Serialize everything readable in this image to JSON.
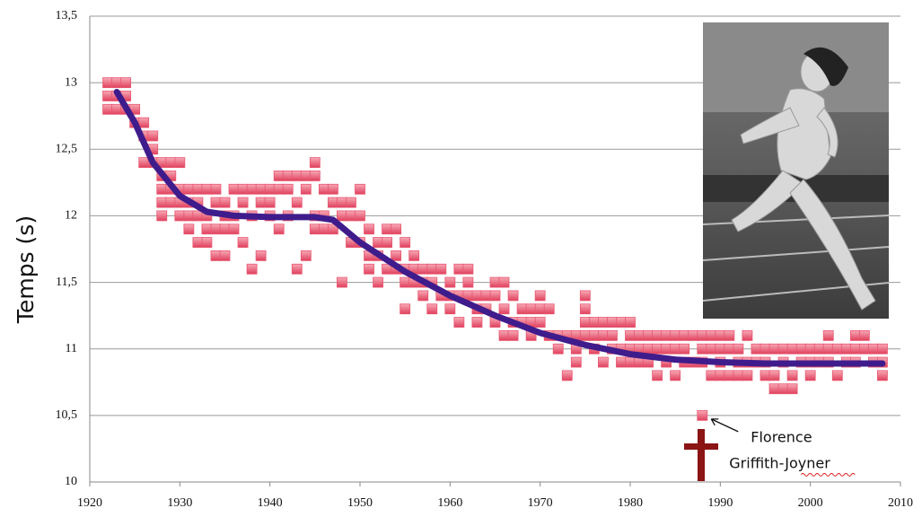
{
  "chart_data": {
    "type": "scatter",
    "y_label": "Temps (s)",
    "xlim": [
      1920,
      2010
    ],
    "xticks": [
      1920,
      1930,
      1940,
      1950,
      1960,
      1970,
      1980,
      1990,
      2000,
      2010
    ],
    "ylim": [
      10,
      13.5
    ],
    "yticks": [
      10,
      {
        "value": 10.5,
        "label": "10,5"
      },
      11,
      {
        "value": 11.5,
        "label": "11,5"
      },
      12,
      {
        "value": 12.5,
        "label": "12,5"
      },
      13,
      {
        "value": 13.5,
        "label": "13,5"
      }
    ],
    "grid": true,
    "series": [
      {
        "color": "#e8566f",
        "x": [
          1922,
          1922,
          1922,
          1923,
          1923,
          1923,
          1924,
          1924,
          1924,
          1925,
          1925,
          1926,
          1926,
          1926,
          1927,
          1927,
          1927,
          1928,
          1928,
          1928,
          1928,
          1928,
          1929,
          1929,
          1929,
          1929,
          1930,
          1930,
          1930,
          1930,
          1931,
          1931,
          1931,
          1931,
          1932,
          1932,
          1932,
          1932,
          1933,
          1933,
          1933,
          1933,
          1934,
          1934,
          1934,
          1934,
          1935,
          1935,
          1935,
          1935,
          1936,
          1936,
          1936,
          1937,
          1937,
          1937,
          1938,
          1938,
          1938,
          1939,
          1939,
          1939,
          1940,
          1940,
          1940,
          1941,
          1941,
          1941,
          1942,
          1942,
          1942,
          1943,
          1943,
          1943,
          1944,
          1944,
          1944,
          1945,
          1945,
          1945,
          1945,
          1946,
          1946,
          1946,
          1947,
          1947,
          1947,
          1948,
          1948,
          1948,
          1949,
          1949,
          1949,
          1950,
          1950,
          1950,
          1951,
          1951,
          1951,
          1952,
          1952,
          1952,
          1953,
          1953,
          1953,
          1954,
          1954,
          1954,
          1955,
          1955,
          1955,
          1955,
          1956,
          1956,
          1956,
          1957,
          1957,
          1957,
          1958,
          1958,
          1958,
          1959,
          1959,
          1960,
          1960,
          1960,
          1961,
          1961,
          1961,
          1962,
          1962,
          1962,
          1963,
          1963,
          1963,
          1964,
          1964,
          1965,
          1965,
          1965,
          1966,
          1966,
          1966,
          1967,
          1967,
          1967,
          1968,
          1968,
          1969,
          1969,
          1969,
          1970,
          1970,
          1970,
          1971,
          1971,
          1972,
          1972,
          1973,
          1973,
          1974,
          1974,
          1974,
          1975,
          1975,
          1975,
          1975,
          1976,
          1976,
          1976,
          1977,
          1977,
          1977,
          1978,
          1978,
          1978,
          1979,
          1979,
          1979,
          1980,
          1980,
          1980,
          1980,
          1981,
          1981,
          1981,
          1982,
          1982,
          1982,
          1983,
          1983,
          1983,
          1984,
          1984,
          1984,
          1985,
          1985,
          1985,
          1986,
          1986,
          1986,
          1987,
          1987,
          1988,
          1988,
          1988,
          1988,
          1989,
          1989,
          1989,
          1990,
          1990,
          1990,
          1990,
          1991,
          1991,
          1991,
          1992,
          1992,
          1992,
          1993,
          1993,
          1993,
          1994,
          1994,
          1995,
          1995,
          1995,
          1996,
          1996,
          1996,
          1997,
          1997,
          1997,
          1998,
          1998,
          1998,
          1999,
          1999,
          2000,
          2000,
          2000,
          2001,
          2001,
          2002,
          2002,
          2002,
          2003,
          2003,
          2004,
          2004,
          2005,
          2005,
          2005,
          2006,
          2006,
          2007,
          2007,
          2008,
          2008,
          2008
        ],
        "values": [
          13.0,
          12.9,
          12.8,
          13.0,
          12.9,
          12.8,
          13.0,
          12.9,
          12.8,
          12.8,
          12.7,
          12.7,
          12.6,
          12.4,
          12.6,
          12.5,
          12.4,
          12.4,
          12.3,
          12.2,
          12.1,
          12.0,
          12.4,
          12.3,
          12.2,
          12.1,
          12.4,
          12.2,
          12.1,
          12.0,
          12.2,
          12.1,
          12.0,
          11.9,
          12.2,
          12.1,
          12.0,
          11.8,
          12.2,
          12.0,
          11.9,
          11.8,
          12.2,
          12.1,
          11.9,
          11.7,
          12.1,
          12.0,
          11.9,
          11.7,
          12.2,
          12.0,
          11.9,
          12.2,
          12.1,
          11.8,
          12.2,
          12.0,
          11.6,
          12.2,
          12.1,
          11.7,
          12.2,
          12.1,
          12.0,
          12.3,
          12.2,
          11.9,
          12.3,
          12.2,
          12.0,
          12.3,
          12.1,
          11.6,
          12.3,
          12.2,
          11.7,
          12.4,
          12.3,
          12.0,
          11.9,
          12.2,
          12.0,
          11.9,
          12.2,
          12.1,
          11.9,
          12.1,
          12.0,
          11.5,
          12.1,
          12.0,
          11.8,
          12.2,
          12.0,
          11.8,
          11.9,
          11.7,
          11.6,
          11.8,
          11.7,
          11.5,
          11.9,
          11.8,
          11.6,
          11.9,
          11.7,
          11.6,
          11.8,
          11.6,
          11.5,
          11.3,
          11.7,
          11.6,
          11.5,
          11.6,
          11.5,
          11.4,
          11.6,
          11.5,
          11.3,
          11.6,
          11.4,
          11.5,
          11.4,
          11.3,
          11.6,
          11.4,
          11.2,
          11.6,
          11.5,
          11.4,
          11.4,
          11.3,
          11.2,
          11.4,
          11.3,
          11.5,
          11.4,
          11.2,
          11.5,
          11.3,
          11.1,
          11.4,
          11.2,
          11.1,
          11.3,
          11.2,
          11.3,
          11.2,
          11.1,
          11.4,
          11.3,
          11.2,
          11.3,
          11.1,
          11.1,
          11.0,
          11.1,
          10.8,
          11.1,
          11.0,
          10.9,
          11.4,
          11.3,
          11.2,
          11.1,
          11.2,
          11.1,
          11.0,
          11.2,
          11.1,
          10.9,
          11.2,
          11.1,
          11.0,
          11.2,
          11.0,
          10.9,
          11.2,
          11.1,
          11.0,
          10.9,
          11.1,
          11.0,
          10.9,
          11.1,
          11.0,
          10.9,
          11.1,
          11.0,
          10.8,
          11.1,
          11.0,
          10.9,
          11.1,
          11.0,
          10.8,
          11.1,
          11.0,
          10.9,
          11.1,
          10.9,
          11.1,
          11.0,
          10.9,
          10.5,
          11.1,
          11.0,
          10.8,
          11.1,
          11.0,
          10.9,
          10.8,
          11.1,
          11.0,
          10.8,
          11.0,
          10.9,
          10.8,
          11.1,
          10.9,
          10.8,
          11.0,
          10.9,
          11.0,
          10.9,
          10.8,
          11.0,
          10.8,
          10.7,
          11.0,
          10.9,
          10.7,
          11.0,
          10.8,
          10.7,
          11.0,
          10.9,
          11.0,
          10.9,
          10.8,
          11.0,
          10.9,
          11.1,
          11.0,
          10.9,
          11.0,
          10.8,
          11.0,
          10.9,
          11.1,
          11.0,
          10.9,
          11.1,
          11.0,
          11.0,
          10.9,
          11.0,
          10.9,
          10.8
        ]
      },
      {
        "type": "line",
        "color": "#3f1c8c",
        "x": [
          1923,
          1925,
          1927,
          1930,
          1933,
          1936,
          1940,
          1945,
          1947,
          1950,
          1955,
          1960,
          1965,
          1970,
          1975,
          1980,
          1985,
          1990,
          1995,
          2000,
          2008
        ],
        "values": [
          12.93,
          12.7,
          12.4,
          12.15,
          12.03,
          12.0,
          11.99,
          11.99,
          11.97,
          11.8,
          11.58,
          11.4,
          11.25,
          11.12,
          11.03,
          10.96,
          10.92,
          10.9,
          10.89,
          10.89,
          10.89
        ]
      }
    ],
    "annotation": {
      "lines": [
        "Florence",
        "Griffith-Joyner"
      ],
      "x": 1988,
      "y": 10.5
    }
  }
}
